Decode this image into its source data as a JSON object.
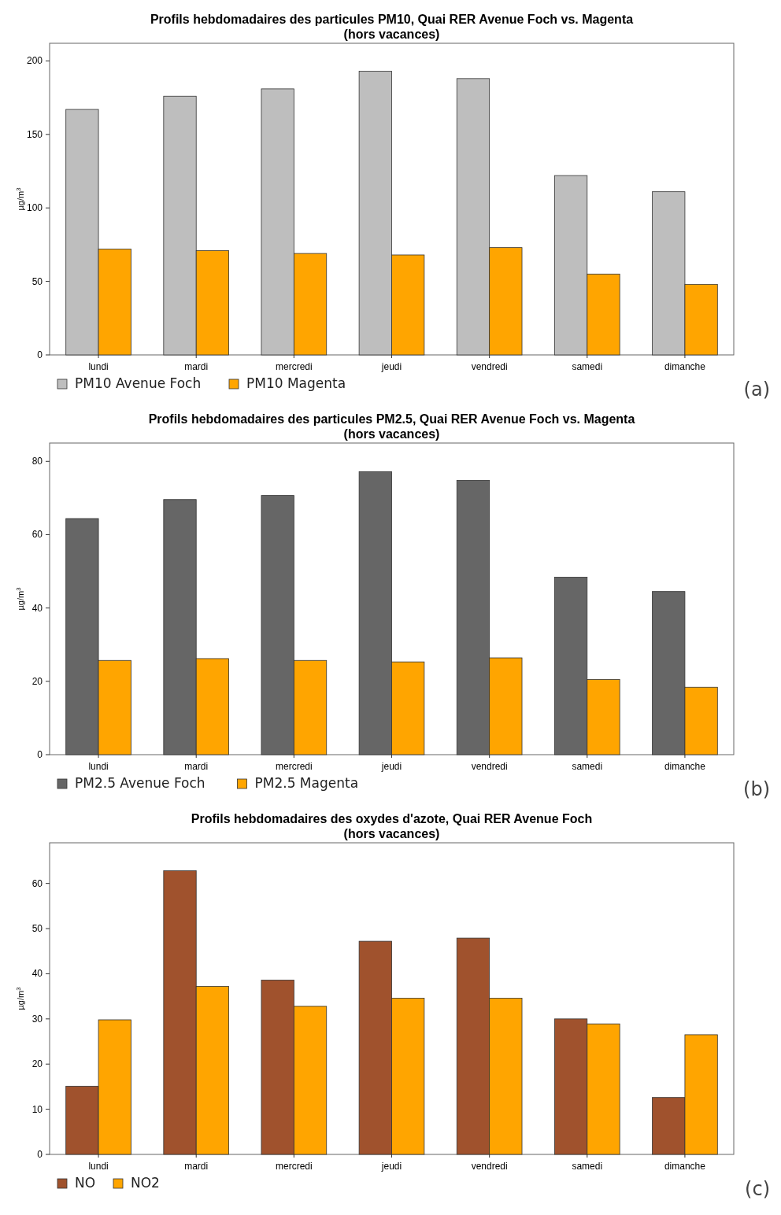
{
  "chart_data": [
    {
      "type": "bar",
      "title": "Profils hebdomadaires des particules PM10, Quai RER Avenue Foch vs. Magenta",
      "subtitle": "(hors vacances)",
      "ylabel": "µg/m$^{3}$",
      "categories": [
        "lundi",
        "mardi",
        "mercredi",
        "jeudi",
        "vendredi",
        "samedi",
        "dimanche"
      ],
      "series": [
        {
          "name": "PM10 Avenue Foch",
          "color": "#bebebe",
          "values": [
            167,
            176,
            181,
            193,
            188,
            122,
            111
          ]
        },
        {
          "name": "PM10 Magenta",
          "color": "#ffa500",
          "values": [
            72,
            71,
            69,
            68,
            73,
            55,
            48
          ]
        }
      ],
      "ylim": [
        0,
        212
      ],
      "yticks": [
        0,
        50,
        100,
        150,
        200
      ],
      "legend": "bottom left",
      "annotations": [
        "(a)"
      ]
    },
    {
      "type": "bar",
      "title": "Profils hebdomadaires des particules PM2.5, Quai RER Avenue Foch vs. Magenta",
      "subtitle": "(hors vacances)",
      "ylabel": "µg/m$^{3}$",
      "categories": [
        "lundi",
        "mardi",
        "mercredi",
        "jeudi",
        "vendredi",
        "samedi",
        "dimanche"
      ],
      "series": [
        {
          "name": "PM2.5 Avenue Foch",
          "color": "#666666",
          "values": [
            64.4,
            69.6,
            70.7,
            77.2,
            74.8,
            48.4,
            44.5
          ]
        },
        {
          "name": "PM2.5 Magenta",
          "color": "#ffa500",
          "values": [
            25.7,
            26.2,
            25.7,
            25.3,
            26.4,
            20.5,
            18.4
          ]
        }
      ],
      "ylim": [
        0,
        85
      ],
      "yticks": [
        0,
        20,
        40,
        60,
        80
      ],
      "legend": "bottom left",
      "annotations": [
        "(b)"
      ]
    },
    {
      "type": "bar",
      "title": "Profils hebdomadaires des oxydes d'azote, Quai RER Avenue Foch",
      "subtitle": "(hors vacances)",
      "ylabel": "µg/m$^{3}$",
      "categories": [
        "lundi",
        "mardi",
        "mercredi",
        "jeudi",
        "vendredi",
        "samedi",
        "dimanche"
      ],
      "series": [
        {
          "name": "NO",
          "color": "#a0522d",
          "values": [
            15.1,
            62.8,
            38.6,
            47.2,
            47.9,
            30,
            12.6
          ]
        },
        {
          "name": "NO2",
          "color": "#ffa500",
          "values": [
            29.8,
            37.2,
            32.8,
            34.6,
            34.6,
            28.9,
            26.5
          ]
        }
      ],
      "ylim": [
        0,
        69
      ],
      "yticks": [
        0,
        10,
        20,
        30,
        40,
        50,
        60
      ],
      "legend": "bottom left",
      "annotations": [
        "(c)"
      ]
    }
  ]
}
